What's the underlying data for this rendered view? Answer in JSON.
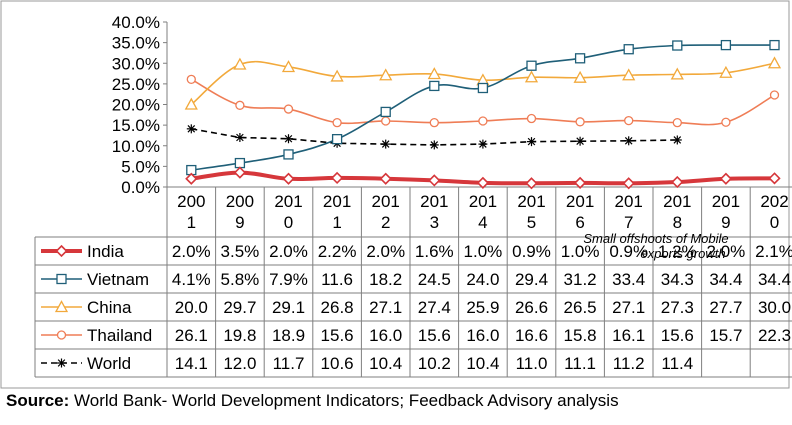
{
  "chart_data": {
    "type": "line",
    "title": "",
    "xlabel": "",
    "ylabel": "",
    "ylim": [
      0,
      40
    ],
    "y_ticks": [
      "0.0%",
      "5.0%",
      "10.0%",
      "15.0%",
      "20.0%",
      "25.0%",
      "30.0%",
      "35.0%",
      "40.0%"
    ],
    "y_tick_values": [
      0,
      5,
      10,
      15,
      20,
      25,
      30,
      35,
      40
    ],
    "categories": [
      "2001",
      "2009",
      "2010",
      "2011",
      "2012",
      "2013",
      "2014",
      "2015",
      "2016",
      "2017",
      "2018",
      "2019",
      "2020"
    ],
    "category_labels": [
      [
        "200",
        "1"
      ],
      [
        "200",
        "9"
      ],
      [
        "201",
        "0"
      ],
      [
        "201",
        "1"
      ],
      [
        "201",
        "2"
      ],
      [
        "201",
        "3"
      ],
      [
        "201",
        "4"
      ],
      [
        "201",
        "5"
      ],
      [
        "201",
        "6"
      ],
      [
        "201",
        "7"
      ],
      [
        "201",
        "8"
      ],
      [
        "201",
        "9"
      ],
      [
        "202",
        "0"
      ]
    ],
    "series": [
      {
        "name": "India",
        "color": "#d6373b",
        "marker": "diamond",
        "dashed": false,
        "values": [
          2.0,
          3.5,
          2.0,
          2.2,
          2.0,
          1.6,
          1.0,
          0.9,
          1.0,
          0.9,
          1.2,
          2.0,
          2.1
        ],
        "labels": [
          "2.0%",
          "3.5%",
          "2.0%",
          "2.2%",
          "2.0%",
          "1.6%",
          "1.0%",
          "0.9%",
          "1.0%",
          "0.9%",
          "1.2%",
          "2.0%",
          "2.1%"
        ]
      },
      {
        "name": "Vietnam",
        "color": "#1f5f78",
        "marker": "square",
        "dashed": false,
        "values": [
          4.1,
          5.8,
          7.9,
          11.6,
          18.2,
          24.5,
          24.0,
          29.4,
          31.2,
          33.4,
          34.3,
          34.4,
          34.4
        ],
        "labels": [
          "4.1%",
          "5.8%",
          "7.9%",
          "11.6",
          "18.2",
          "24.5",
          "24.0",
          "29.4",
          "31.2",
          "33.4",
          "34.3",
          "34.4",
          "34.4"
        ]
      },
      {
        "name": "China",
        "color": "#f2a93b",
        "marker": "triangle",
        "dashed": false,
        "values": [
          20.0,
          29.7,
          29.1,
          26.8,
          27.1,
          27.4,
          25.9,
          26.6,
          26.5,
          27.1,
          27.3,
          27.7,
          30.0
        ],
        "labels": [
          "20.0",
          "29.7",
          "29.1",
          "26.8",
          "27.1",
          "27.4",
          "25.9",
          "26.6",
          "26.5",
          "27.1",
          "27.3",
          "27.7",
          "30.0"
        ]
      },
      {
        "name": "Thailand",
        "color": "#ef7d56",
        "marker": "circle",
        "dashed": false,
        "values": [
          26.1,
          19.8,
          18.9,
          15.6,
          16.0,
          15.6,
          16.0,
          16.6,
          15.8,
          16.1,
          15.6,
          15.7,
          22.3
        ],
        "labels": [
          "26.1",
          "19.8",
          "18.9",
          "15.6",
          "16.0",
          "15.6",
          "16.0",
          "16.6",
          "15.8",
          "16.1",
          "15.6",
          "15.7",
          "22.3"
        ]
      },
      {
        "name": "World",
        "color": "#000000",
        "marker": "star",
        "dashed": true,
        "values": [
          14.1,
          12.0,
          11.7,
          10.6,
          10.4,
          10.2,
          10.4,
          11.0,
          11.1,
          11.2,
          11.4,
          null,
          null
        ],
        "labels": [
          "14.1",
          "12.0",
          "11.7",
          "10.6",
          "10.4",
          "10.2",
          "10.4",
          "11.0",
          "11.1",
          "11.2",
          "11.4",
          "",
          ""
        ]
      }
    ],
    "legend": "data-table-left",
    "grid": false,
    "annotation": [
      "Small offshoots of Mobile",
      "exports growth"
    ]
  },
  "source": {
    "label": "Source:",
    "text": " World Bank- World Development Indicators; Feedback Advisory analysis"
  }
}
